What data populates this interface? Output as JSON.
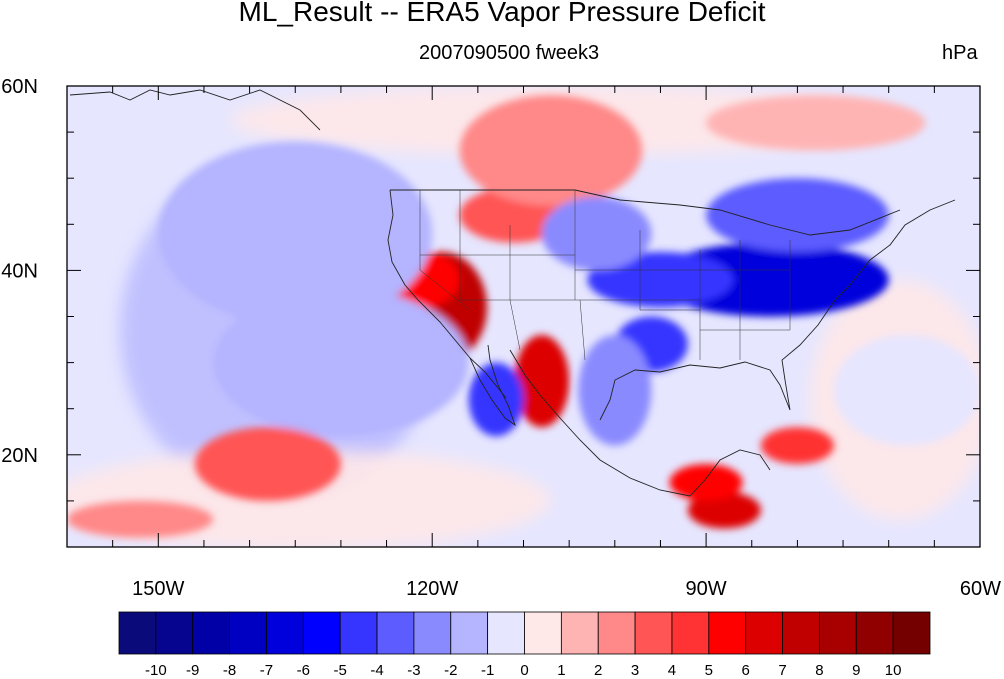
{
  "title": "ML_Result -- ERA5 Vapor Pressure Deficit",
  "subtitle": "2007090500 fweek3",
  "units": "hPa",
  "map": {
    "projection": "cylindrical equidistant",
    "lon_range": [
      -160,
      -60
    ],
    "lat_range": [
      10,
      60
    ],
    "x_tick_labels": [
      "150W",
      "120W",
      "90W",
      "60W"
    ],
    "x_tick_values": [
      -150,
      -120,
      -90,
      -60
    ],
    "y_tick_labels": [
      "20N",
      "40N",
      "60N"
    ],
    "y_tick_values": [
      20,
      40,
      60
    ]
  },
  "colorbar": {
    "labels": [
      "-10",
      "-9",
      "-8",
      "-7",
      "-6",
      "-5",
      "-4",
      "-3",
      "-2",
      "-1",
      "0",
      "1",
      "2",
      "3",
      "4",
      "5",
      "6",
      "7",
      "8",
      "9",
      "10"
    ],
    "colors": [
      "#0a0a7a",
      "#05058f",
      "#0000a6",
      "#0000c2",
      "#0000dc",
      "#0000ff",
      "#3535ff",
      "#5c5cff",
      "#8a8aff",
      "#b4b4ff",
      "#e6e6ff",
      "#ffe8e8",
      "#ffb4b4",
      "#ff8888",
      "#ff5555",
      "#ff3333",
      "#ff0000",
      "#dd0000",
      "#c00000",
      "#a80000",
      "#900000",
      "#750000"
    ]
  },
  "field_blobs": [
    {
      "lon": -119,
      "lat": 36,
      "rx": 5,
      "ry": 6,
      "value": 7
    },
    {
      "lon": -121,
      "lat": 39,
      "rx": 4,
      "ry": 3,
      "value": 5
    },
    {
      "lon": -108,
      "lat": 28,
      "rx": 3,
      "ry": 5,
      "value": 6
    },
    {
      "lon": -111,
      "lat": 46,
      "rx": 6,
      "ry": 3,
      "value": 3
    },
    {
      "lon": -107,
      "lat": 53,
      "rx": 10,
      "ry": 6,
      "value": 2
    },
    {
      "lon": -83,
      "lat": 39,
      "rx": 13,
      "ry": 4,
      "value": -7
    },
    {
      "lon": -95,
      "lat": 39,
      "rx": 8,
      "ry": 3,
      "value": -5
    },
    {
      "lon": -80,
      "lat": 46,
      "rx": 10,
      "ry": 4,
      "value": -4
    },
    {
      "lon": -102,
      "lat": 44,
      "rx": 6,
      "ry": 4,
      "value": -3
    },
    {
      "lon": -96,
      "lat": 32,
      "rx": 4,
      "ry": 3,
      "value": -5
    },
    {
      "lon": -113,
      "lat": 26,
      "rx": 3,
      "ry": 4,
      "value": -5
    },
    {
      "lon": -100,
      "lat": 27,
      "rx": 4,
      "ry": 6,
      "value": -3
    },
    {
      "lon": -135,
      "lat": 44,
      "rx": 15,
      "ry": 10,
      "value": -2
    },
    {
      "lon": -130,
      "lat": 30,
      "rx": 14,
      "ry": 8,
      "value": -2
    },
    {
      "lon": -138,
      "lat": 19,
      "rx": 8,
      "ry": 4,
      "value": 3
    },
    {
      "lon": -152,
      "lat": 13,
      "rx": 8,
      "ry": 2,
      "value": 2
    },
    {
      "lon": -78,
      "lat": 56,
      "rx": 12,
      "ry": 3,
      "value": 1
    },
    {
      "lon": -88,
      "lat": 14,
      "rx": 4,
      "ry": 2,
      "value": 6
    },
    {
      "lon": -90,
      "lat": 17,
      "rx": 4,
      "ry": 2,
      "value": 5
    },
    {
      "lon": -80,
      "lat": 21,
      "rx": 4,
      "ry": 2,
      "value": 4
    },
    {
      "lon": -68,
      "lat": 27,
      "rx": 8,
      "ry": 6,
      "value": -1
    }
  ]
}
